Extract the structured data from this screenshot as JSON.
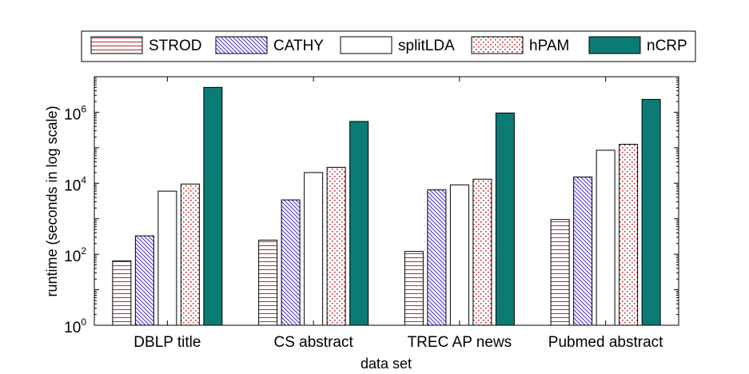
{
  "chart_data": {
    "type": "bar",
    "scale": "log",
    "title": "",
    "xlabel": "data set",
    "ylabel": "runtime (seconds in log scale)",
    "ylim": [
      1,
      10000000
    ],
    "yticks": [
      {
        "value": 1,
        "base": "10",
        "exp": "0"
      },
      {
        "value": 100,
        "base": "10",
        "exp": "2"
      },
      {
        "value": 10000,
        "base": "10",
        "exp": "4"
      },
      {
        "value": 1000000,
        "base": "10",
        "exp": "6"
      }
    ],
    "categories": [
      "DBLP title",
      "CS abstract",
      "TREC AP news",
      "Pubmed abstract"
    ],
    "legend_position": "top",
    "series": [
      {
        "name": "STROD",
        "pattern": "hlines",
        "color": "#c0282d",
        "values": [
          65,
          250,
          120,
          950
        ]
      },
      {
        "name": "CATHY",
        "pattern": "diag",
        "color": "#4b2cc8",
        "values": [
          330,
          3400,
          6500,
          15000
        ]
      },
      {
        "name": "splitLDA",
        "pattern": "plain",
        "color": "#000000",
        "values": [
          6000,
          20000,
          9000,
          85000
        ]
      },
      {
        "name": "hPAM",
        "pattern": "dots",
        "color": "#c0282d",
        "values": [
          9500,
          28000,
          13000,
          125000
        ]
      },
      {
        "name": "nCRP",
        "pattern": "solid",
        "color": "#0b7b74",
        "values": [
          5000000,
          550000,
          950000,
          2300000
        ]
      }
    ]
  }
}
